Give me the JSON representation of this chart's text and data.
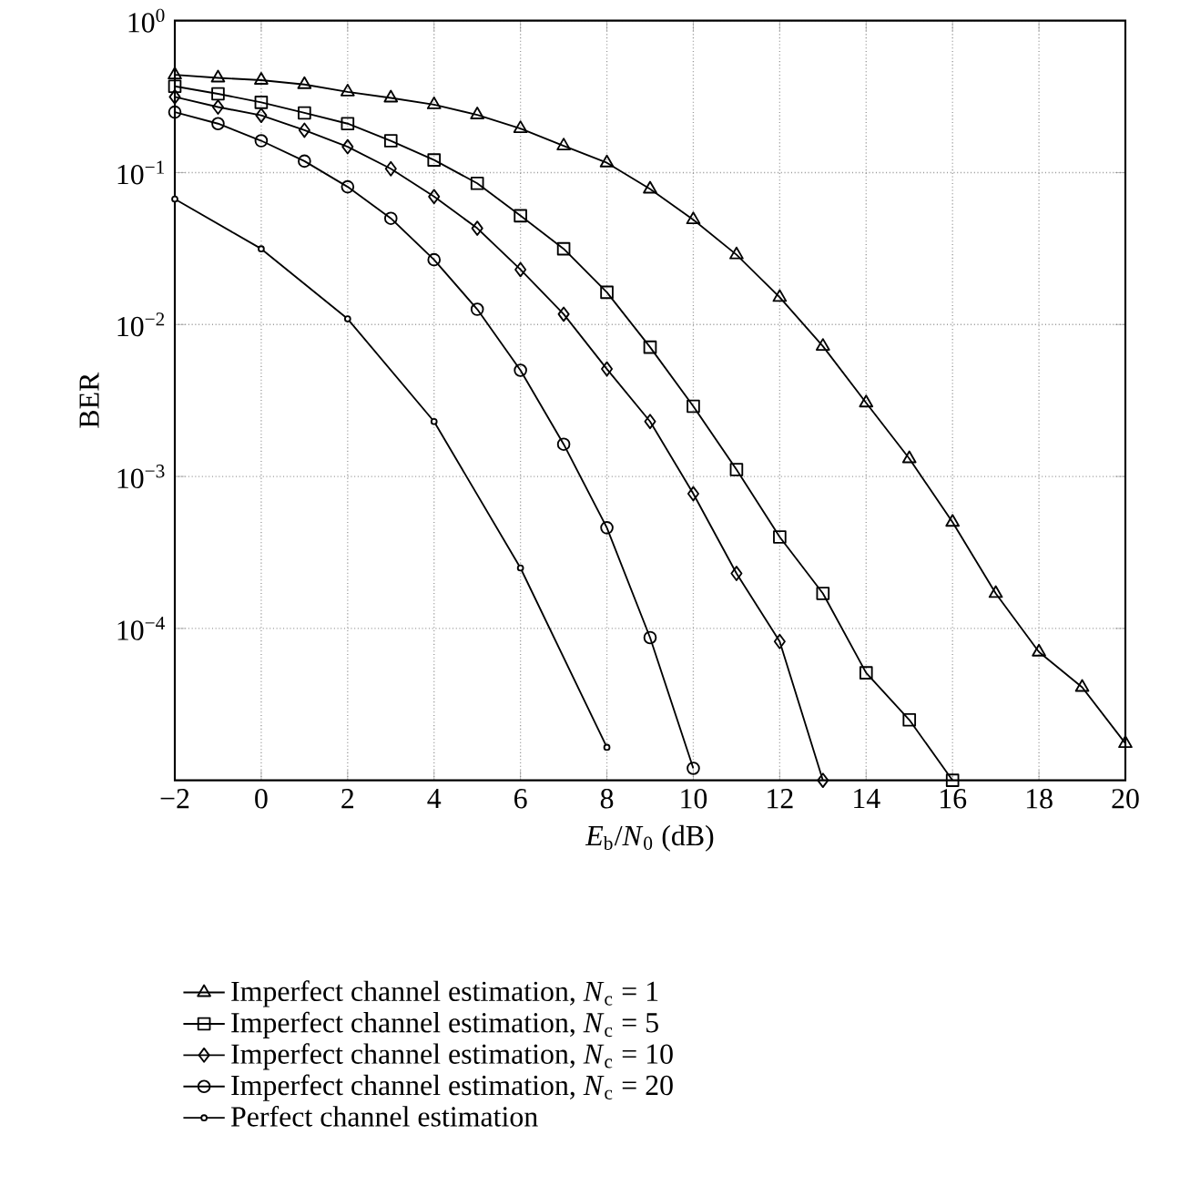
{
  "chart_data": {
    "type": "line",
    "xlabel": "*E*$_{b}$/*N*$_{0}$ (dB)",
    "ylabel": "BER",
    "xlim": [
      -2,
      20
    ],
    "ylim": [
      1e-05,
      1
    ],
    "log": "y",
    "grid": true,
    "legend": "bottom",
    "xticks": [
      {
        "value": -2,
        "label": "−2"
      },
      0,
      2,
      4,
      6,
      8,
      10,
      12,
      14,
      16,
      18,
      20
    ],
    "yticks": [
      {
        "value": 1,
        "label": "10$^{0}$"
      },
      {
        "value": 0.1,
        "label": "10$^{−1}$"
      },
      {
        "value": 0.01,
        "label": "10$^{−2}$"
      },
      {
        "value": 0.001,
        "label": "10$^{−3}$"
      },
      {
        "value": 0.0001,
        "label": "10$^{−4}$"
      }
    ],
    "series": [
      {
        "name": "Imperfect channel estimation, *N*$_{c}$ = 1",
        "color": "#000000",
        "marker": "triangle",
        "x": [
          -2,
          -1,
          0,
          1,
          2,
          3,
          4,
          5,
          6,
          7,
          8,
          9,
          10,
          11,
          12,
          13,
          14,
          15,
          16,
          17,
          18,
          19,
          20
        ],
        "values": [
          0.44,
          0.42,
          0.406,
          0.38,
          0.34,
          0.31,
          0.28,
          0.24,
          0.195,
          0.15,
          0.116,
          0.078,
          0.049,
          0.0288,
          0.0151,
          0.0072,
          0.00305,
          0.00131,
          0.0005,
          0.00017,
          7e-05,
          4.1e-05,
          1.75e-05
        ]
      },
      {
        "name": "Imperfect channel estimation, *N*$_{c}$ = 5",
        "color": "#000000",
        "marker": "square",
        "x": [
          -2,
          -1,
          0,
          1,
          2,
          3,
          4,
          5,
          6,
          7,
          8,
          9,
          10,
          11,
          12,
          13,
          14,
          15,
          16
        ],
        "values": [
          0.37,
          0.33,
          0.29,
          0.247,
          0.21,
          0.162,
          0.121,
          0.085,
          0.052,
          0.0315,
          0.0163,
          0.0071,
          0.0029,
          0.00111,
          0.0004,
          0.00017,
          5.1e-05,
          2.5e-05,
          1e-05
        ]
      },
      {
        "name": "Imperfect channel estimation, *N*$_{c}$ = 10",
        "color": "#000000",
        "marker": "diamond",
        "x": [
          -2,
          -1,
          0,
          1,
          2,
          3,
          4,
          5,
          6,
          7,
          8,
          9,
          10,
          11,
          12,
          13
        ],
        "values": [
          0.315,
          0.27,
          0.238,
          0.19,
          0.148,
          0.106,
          0.0695,
          0.043,
          0.023,
          0.0117,
          0.0051,
          0.0023,
          0.00077,
          0.00023,
          8.2e-05,
          1e-05
        ]
      },
      {
        "name": "Imperfect channel estimation, *N*$_{c}$ = 20",
        "color": "#000000",
        "marker": "circle",
        "x": [
          -2,
          -1,
          0,
          1,
          2,
          3,
          4,
          5,
          6,
          7,
          8,
          9,
          10
        ],
        "values": [
          0.25,
          0.21,
          0.162,
          0.119,
          0.0806,
          0.05,
          0.0267,
          0.0126,
          0.005,
          0.00163,
          0.00046,
          8.7e-05,
          1.2e-05
        ]
      },
      {
        "name": "Perfect channel estimation",
        "color": "#000000",
        "marker": "star",
        "x": [
          -2,
          0,
          2,
          4,
          6,
          8
        ],
        "values": [
          0.067,
          0.0315,
          0.0109,
          0.0023,
          0.00025,
          1.65e-05
        ]
      }
    ]
  }
}
